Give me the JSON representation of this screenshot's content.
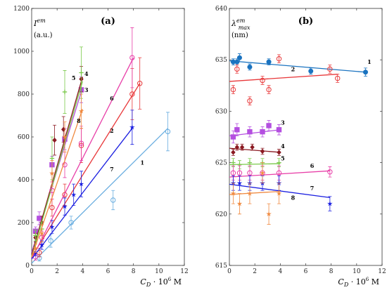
{
  "colors": {
    "1": "#6aaee0",
    "2": "#e8383a",
    "3": "#b44fe0",
    "4": "#8b1a22",
    "5": "#7ac94a",
    "6": "#e83fa8",
    "7": "#1a1ee0",
    "8": "#f08a40",
    "9": "#b5a020",
    "blue1": "#1a73c0",
    "red2": "#e8383a"
  },
  "chart_data": [
    {
      "type": "scatter",
      "title": "(a)",
      "ylabel": "I^{em}",
      "ylabel_unit": "(a.u.)",
      "xlabel": "C_D · 10^6 M",
      "xlim": [
        0,
        12
      ],
      "ylim": [
        0,
        1200
      ],
      "xticks": [
        "0",
        "2",
        "4",
        "6",
        "8",
        "10",
        "12"
      ],
      "yticks": [
        "0",
        "200",
        "400",
        "600",
        "800",
        "1000",
        "1200"
      ],
      "series": [
        {
          "name": "1",
          "marker": "circle-open",
          "fit": [
            [
              0,
              10
            ],
            [
              10.7,
              640
            ]
          ],
          "x": [
            0.6,
            1.5,
            3.1,
            6.4,
            10.7
          ],
          "y": [
            35,
            115,
            200,
            305,
            625
          ],
          "err": [
            15,
            30,
            30,
            45,
            90
          ]
        },
        {
          "name": "2",
          "marker": "circle-open",
          "fit": [
            [
              0,
              40
            ],
            [
              8.5,
              850
            ]
          ],
          "x": [
            0.6,
            1.6,
            2.6,
            3.9,
            7.9,
            8.5
          ],
          "y": [
            60,
            270,
            330,
            560,
            800,
            850
          ],
          "err": [
            20,
            40,
            50,
            80,
            120,
            120
          ]
        },
        {
          "name": "3",
          "marker": "square",
          "fit": [
            [
              0,
              60
            ],
            [
              4,
              830
            ]
          ],
          "x": [
            0.3,
            0.6,
            1.6,
            2.6,
            3.9
          ],
          "y": [
            160,
            220,
            470,
            590,
            820
          ],
          "err": [
            20,
            30,
            40,
            50,
            60
          ]
        },
        {
          "name": "4",
          "marker": "diamond",
          "fit": [
            [
              0,
              50
            ],
            [
              4,
              880
            ]
          ],
          "x": [
            0.3,
            0.8,
            1.8,
            2.5,
            3.9
          ],
          "y": [
            130,
            200,
            585,
            635,
            870
          ],
          "err": [
            20,
            30,
            70,
            60,
            60
          ]
        },
        {
          "name": "5",
          "marker": "plus",
          "fit": [
            [
              0,
              40
            ],
            [
              4,
              860
            ]
          ],
          "x": [
            0.3,
            0.8,
            1.6,
            2.6,
            3.9
          ],
          "y": [
            140,
            170,
            500,
            810,
            900
          ],
          "err": [
            25,
            30,
            100,
            100,
            120
          ]
        },
        {
          "name": "6",
          "marker": "circle-open",
          "fit": [
            [
              0,
              30
            ],
            [
              8,
              970
            ]
          ],
          "x": [
            0.3,
            0.8,
            1.6,
            2.6,
            3.9,
            7.9
          ],
          "y": [
            40,
            130,
            350,
            470,
            570,
            970
          ],
          "err": [
            15,
            30,
            40,
            60,
            80,
            140
          ]
        },
        {
          "name": "7",
          "marker": "star",
          "fit": [
            [
              0,
              30
            ],
            [
              7.9,
              640
            ]
          ],
          "x": [
            0.3,
            0.8,
            1.6,
            2.6,
            3.3,
            3.9,
            7.9
          ],
          "y": [
            60,
            95,
            180,
            275,
            330,
            380,
            645
          ],
          "err": [
            15,
            20,
            30,
            40,
            50,
            60,
            80
          ]
        },
        {
          "name": "8",
          "marker": "star",
          "fit": [
            [
              0,
              40
            ],
            [
              4,
              730
            ]
          ],
          "x": [
            0.3,
            0.8,
            1.6,
            2.6,
            3.9
          ],
          "y": [
            80,
            150,
            430,
            600,
            720
          ],
          "err": [
            20,
            40,
            60,
            70,
            80
          ]
        }
      ],
      "data_labels": [
        {
          "text": "1",
          "x": 8.7,
          "y": 470
        },
        {
          "text": "2",
          "x": 6.3,
          "y": 620
        },
        {
          "text": "3",
          "x": 4.3,
          "y": 810
        },
        {
          "text": "4",
          "x": 4.3,
          "y": 885
        },
        {
          "text": "5",
          "x": 3.3,
          "y": 865
        },
        {
          "text": "6",
          "x": 6.3,
          "y": 770
        },
        {
          "text": "7",
          "x": 6.3,
          "y": 440
        },
        {
          "text": "8",
          "x": 3.7,
          "y": 665
        }
      ]
    },
    {
      "type": "scatter",
      "title": "(b)",
      "ylabel": "λ^{em}_{max}",
      "ylabel_unit": "(nm)",
      "xlabel": "C_D · 10^6 M",
      "xlim": [
        0,
        12
      ],
      "ylim": [
        615,
        640
      ],
      "xticks": [
        "0",
        "2",
        "4",
        "6",
        "8",
        "10",
        "12"
      ],
      "yticks": [
        "615",
        "620",
        "625",
        "630",
        "635",
        "640"
      ],
      "series": [
        {
          "name": "1",
          "marker": "dot",
          "fit": [
            [
              0,
              634.9
            ],
            [
              10.7,
              633.8
            ]
          ],
          "x": [
            0.3,
            0.6,
            0.8,
            1.6,
            3.1,
            6.4,
            10.7
          ],
          "y": [
            634.8,
            634.8,
            635.2,
            634.3,
            634.8,
            633.9,
            633.8
          ],
          "err": [
            0.3,
            0.3,
            0.4,
            0.3,
            0.3,
            0.3,
            0.4
          ]
        },
        {
          "name": "2",
          "marker": "circle-open",
          "fit": [
            [
              0,
              632.9
            ],
            [
              8.5,
              633.6
            ]
          ],
          "x": [
            0.3,
            0.6,
            1.6,
            2.6,
            3.1,
            3.9,
            7.9,
            8.5
          ],
          "y": [
            632.1,
            634.1,
            631.0,
            633.0,
            632.1,
            635.1,
            634.1,
            633.2
          ],
          "err": [
            0.4,
            0.4,
            0.4,
            0.4,
            0.4,
            0.4,
            0.4,
            0.4
          ]
        },
        {
          "name": "3",
          "marker": "square",
          "fit": [
            [
              0,
              627.6
            ],
            [
              4,
              628.2
            ]
          ],
          "x": [
            0.3,
            0.6,
            1.6,
            2.6,
            3.1,
            3.9
          ],
          "y": [
            627.5,
            628.2,
            628.0,
            628.0,
            628.6,
            628.2
          ],
          "err": [
            0.6,
            0.6,
            0.5,
            0.5,
            0.5,
            0.5
          ]
        },
        {
          "name": "4",
          "marker": "diamond",
          "fit": [
            [
              0,
              626.4
            ],
            [
              4,
              626.0
            ]
          ],
          "x": [
            0.3,
            0.6,
            1.0,
            1.8,
            2.6,
            3.9
          ],
          "y": [
            626.0,
            626.5,
            626.5,
            626.5,
            626.1,
            626.0
          ],
          "err": [
            0.3,
            0.3,
            0.3,
            0.3,
            0.3,
            0.3
          ]
        },
        {
          "name": "5",
          "marker": "plus",
          "fit": [
            [
              0,
              624.8
            ],
            [
              4,
              624.9
            ]
          ],
          "x": [
            0.3,
            0.8,
            1.6,
            2.6,
            3.9
          ],
          "y": [
            625.0,
            624.8,
            625.0,
            625.0,
            625.0
          ],
          "err": [
            0.4,
            0.4,
            0.4,
            0.4,
            0.4
          ]
        },
        {
          "name": "6",
          "marker": "circle-open",
          "fit": [
            [
              0,
              623.6
            ],
            [
              7.9,
              624.2
            ]
          ],
          "x": [
            0.3,
            0.8,
            1.6,
            2.6,
            3.9,
            7.9
          ],
          "y": [
            624.0,
            624.0,
            624.0,
            624.0,
            624.0,
            624.1
          ],
          "err": [
            0.7,
            0.7,
            0.7,
            0.7,
            0.7,
            0.5
          ]
        },
        {
          "name": "7",
          "marker": "star",
          "fit": [
            [
              0,
              622.9
            ],
            [
              7.9,
              621.6
            ]
          ],
          "x": [
            0.3,
            0.8,
            1.6,
            2.6,
            3.9,
            7.9
          ],
          "y": [
            623.0,
            623.0,
            623.0,
            623.0,
            623.0,
            621.0
          ],
          "err": [
            0.7,
            0.7,
            0.7,
            0.7,
            0.7,
            0.7
          ]
        },
        {
          "name": "8",
          "marker": "star",
          "fit": [
            [
              0,
              621.9
            ],
            [
              4,
              622.2
            ]
          ],
          "x": [
            0.3,
            0.8,
            1.6,
            2.6,
            3.1,
            3.9
          ],
          "y": [
            622.0,
            621.0,
            622.0,
            624.0,
            620.0,
            622.0
          ],
          "err": [
            1.0,
            1.0,
            1.0,
            1.0,
            1.0,
            1.0
          ]
        }
      ],
      "data_labels": [
        {
          "text": "1",
          "x": 11.0,
          "y": 634.6
        },
        {
          "text": "2",
          "x": 5.0,
          "y": 633.9
        },
        {
          "text": "3",
          "x": 4.2,
          "y": 628.7
        },
        {
          "text": "4",
          "x": 4.2,
          "y": 626.4
        },
        {
          "text": "5",
          "x": 4.2,
          "y": 625.2
        },
        {
          "text": "6",
          "x": 6.5,
          "y": 624.5
        },
        {
          "text": "7",
          "x": 6.5,
          "y": 622.3
        },
        {
          "text": "8",
          "x": 5.0,
          "y": 621.4
        }
      ]
    }
  ]
}
